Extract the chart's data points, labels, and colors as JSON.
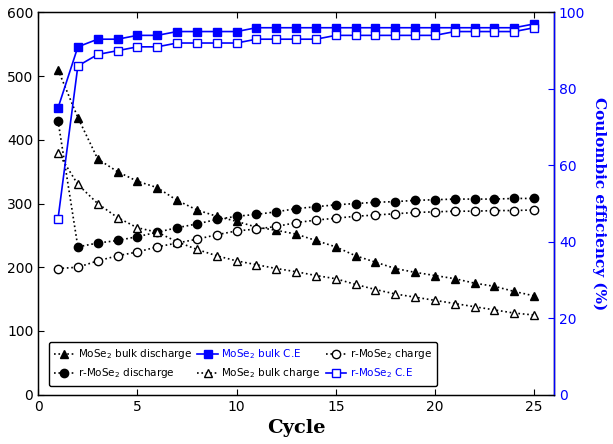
{
  "xlabel": "Cycle",
  "ylabel_right": "Coulombic efficiency (%)",
  "cycles": [
    1,
    2,
    3,
    4,
    5,
    6,
    7,
    8,
    9,
    10,
    11,
    12,
    13,
    14,
    15,
    16,
    17,
    18,
    19,
    20,
    21,
    22,
    23,
    24,
    25
  ],
  "bulk_discharge": [
    510,
    435,
    370,
    350,
    335,
    325,
    305,
    290,
    280,
    272,
    263,
    258,
    252,
    242,
    232,
    218,
    208,
    198,
    192,
    187,
    182,
    175,
    170,
    162,
    155
  ],
  "bulk_charge": [
    380,
    330,
    300,
    278,
    262,
    255,
    240,
    228,
    218,
    210,
    204,
    198,
    193,
    187,
    182,
    173,
    165,
    158,
    153,
    148,
    143,
    138,
    133,
    128,
    125
  ],
  "r_discharge": [
    430,
    232,
    238,
    242,
    248,
    255,
    262,
    268,
    275,
    280,
    283,
    287,
    292,
    295,
    298,
    300,
    302,
    303,
    305,
    306,
    307,
    307,
    307,
    308,
    308
  ],
  "r_charge": [
    198,
    200,
    210,
    218,
    224,
    232,
    238,
    244,
    251,
    257,
    260,
    264,
    270,
    274,
    277,
    280,
    282,
    284,
    286,
    287,
    288,
    288,
    289,
    289,
    290
  ],
  "bulk_CE": [
    75,
    91,
    93,
    93,
    94,
    94,
    95,
    95,
    95,
    95,
    96,
    96,
    96,
    96,
    96,
    96,
    96,
    96,
    96,
    96,
    96,
    96,
    96,
    96,
    97
  ],
  "r_CE": [
    46,
    86,
    89,
    90,
    91,
    91,
    92,
    92,
    92,
    92,
    93,
    93,
    93,
    93,
    94,
    94,
    94,
    94,
    94,
    94,
    95,
    95,
    95,
    95,
    96
  ],
  "xlim": [
    0,
    26
  ],
  "ylim_left": [
    0,
    600
  ],
  "ylim_right": [
    0,
    100
  ],
  "color_black": "#000000",
  "color_blue": "#0000ff",
  "legend_entries": [
    "MoSe$_2$ bulk discharge",
    "r-MoSe$_2$ discharge",
    "MoSe$_2$ bulk C.E",
    "MoSe$_2$ bulk charge",
    "r-MoSe$_2$ charge",
    "r-MoSe$_2$ C.E"
  ]
}
